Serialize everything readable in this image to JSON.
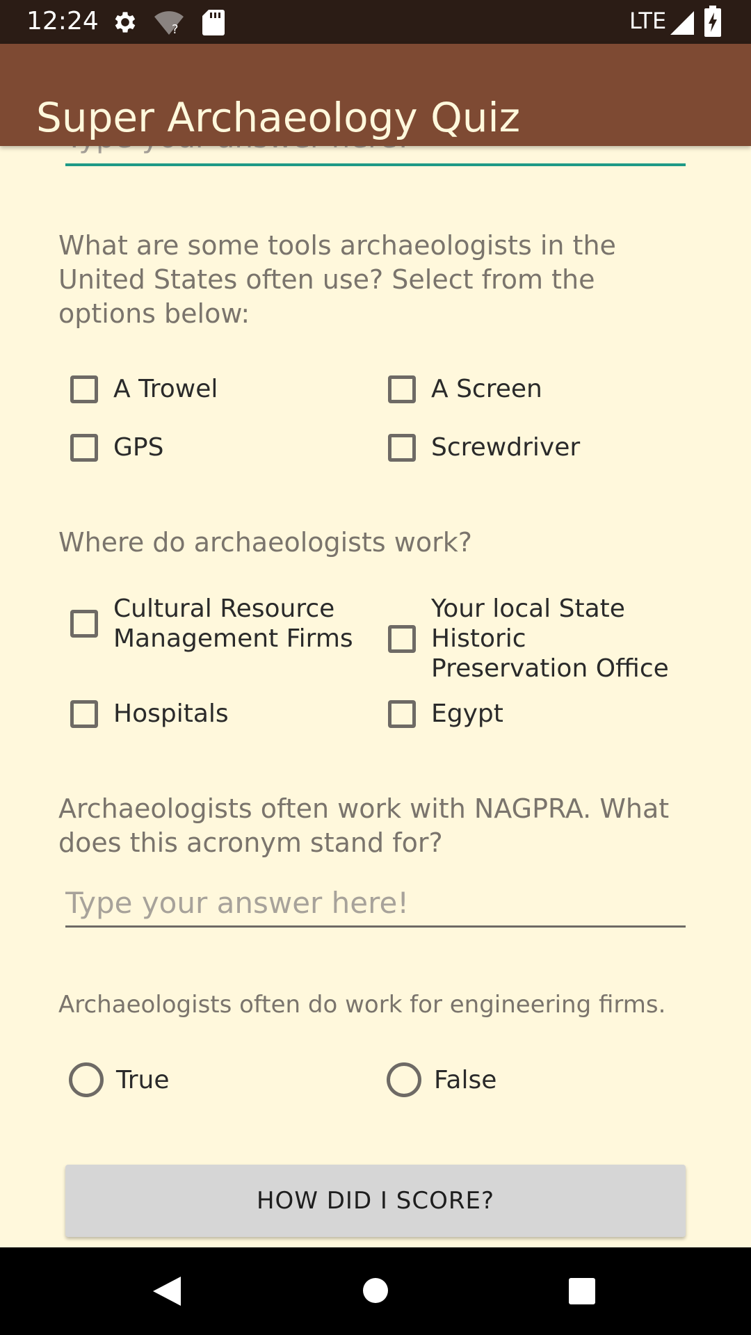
{
  "status_bar": {
    "time": "12:24",
    "network": "LTE",
    "icons": [
      "settings-icon",
      "wifi-unknown-icon",
      "sd-card-icon",
      "signal-icon",
      "battery-charging-icon"
    ]
  },
  "app_bar": {
    "title": "Super Archaeology Quiz"
  },
  "previous_input": {
    "placeholder": "Type your answer here!"
  },
  "questions": {
    "tools": {
      "text": "What are some tools archaeologists in the United States often use? Select from the options below:",
      "options": [
        "A Trowel",
        "A Screen",
        "GPS",
        "Screwdriver"
      ]
    },
    "workplaces": {
      "text": "Where do archaeologists work?",
      "options": [
        "Cultural Resource Management Firms",
        "Your local State Historic Preservation Office",
        "Hospitals",
        "Egypt"
      ]
    },
    "nagpra": {
      "text": "Archaeologists often work with NAGPRA. What does this acronym stand for?",
      "placeholder": "Type your answer here!"
    },
    "engineering": {
      "text": "Archaeologists often do work for engineering firms.",
      "options": [
        "True",
        "False"
      ]
    }
  },
  "score_button": {
    "label": "HOW DID I SCORE?"
  },
  "nav_bar": {
    "icons": [
      "back-icon",
      "home-icon",
      "recents-icon"
    ]
  },
  "colors": {
    "status_bar": "#2B1C15",
    "app_bar": "#7E4A33",
    "background": "#FFF8DC",
    "accent": "#1E9A86",
    "button": "#D6D6D6"
  }
}
